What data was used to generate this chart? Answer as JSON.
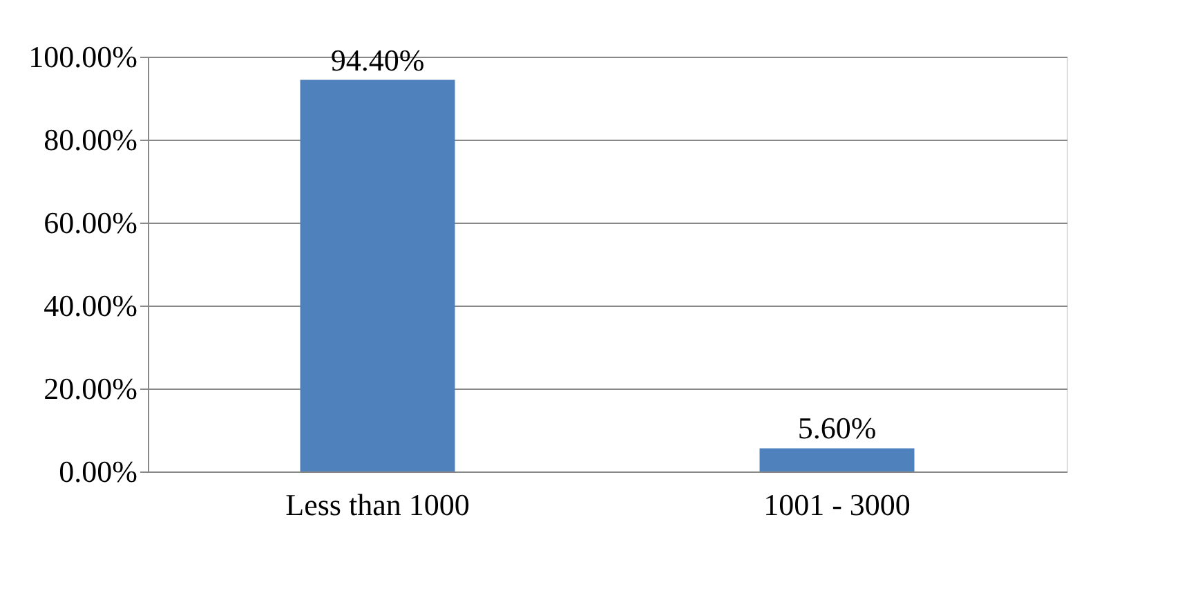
{
  "chart_data": {
    "type": "bar",
    "categories": [
      "Less than 1000",
      "1001 - 3000"
    ],
    "values": [
      94.4,
      5.6
    ],
    "color": "#4f81bd",
    "value_labels": [
      "94.40%",
      "5.60%"
    ],
    "ylim": [
      0,
      100
    ],
    "yticks": [
      {
        "value": 0,
        "label": "0.00%"
      },
      {
        "value": 20,
        "label": "20.00%"
      },
      {
        "value": 40,
        "label": "40.00%"
      },
      {
        "value": 60,
        "label": "60.00%"
      },
      {
        "value": 80,
        "label": "80.00%"
      },
      {
        "value": 100,
        "label": "100.00%"
      }
    ],
    "grid": "y"
  }
}
